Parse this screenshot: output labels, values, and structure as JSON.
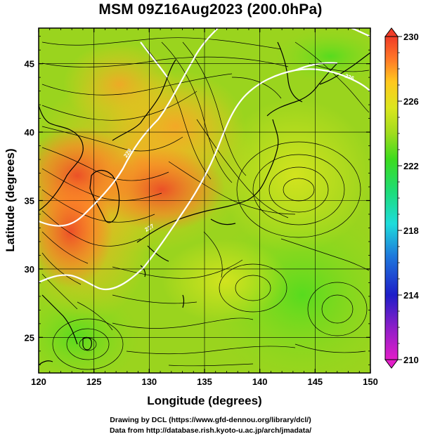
{
  "title": "MSM 09Z16Aug2023 (200.0hPa)",
  "xlabel": "Longitude (degrees)",
  "ylabel": "Latitude  (degrees)",
  "x_ticks": [
    {
      "value": 120,
      "label": "120"
    },
    {
      "value": 125,
      "label": "125"
    },
    {
      "value": 130,
      "label": "130"
    },
    {
      "value": 135,
      "label": "135"
    },
    {
      "value": 140,
      "label": "140"
    },
    {
      "value": 145,
      "label": "145"
    },
    {
      "value": 150,
      "label": "150"
    }
  ],
  "y_ticks": [
    {
      "value": 25,
      "label": "25"
    },
    {
      "value": 30,
      "label": "30"
    },
    {
      "value": 35,
      "label": "35"
    },
    {
      "value": 40,
      "label": "40"
    },
    {
      "value": 45,
      "label": "45"
    }
  ],
  "xlim": [
    120,
    150
  ],
  "ylim": [
    22.4,
    47.6
  ],
  "colorbar": {
    "min": 210,
    "max": 230,
    "tick_labels": [
      "230",
      "226",
      "222",
      "218",
      "214",
      "210"
    ],
    "colors": [
      "#e21ec8",
      "#8c1ec8",
      "#1e1ec8",
      "#1e78dc",
      "#1edcdc",
      "#1edc78",
      "#3cdc1e",
      "#a0dc1e",
      "#dce61e",
      "#ffc81e",
      "#ff7828",
      "#f03c28"
    ]
  },
  "credits": {
    "line1": "Drawing by DCL (https://www.gfd-dennou.org/library/dcl/)",
    "line2": "Data from http://database.rish.kyoto-u.ac.jp/arch/jmadata/"
  },
  "contour_labels": [
    "228",
    "227",
    "226"
  ]
}
